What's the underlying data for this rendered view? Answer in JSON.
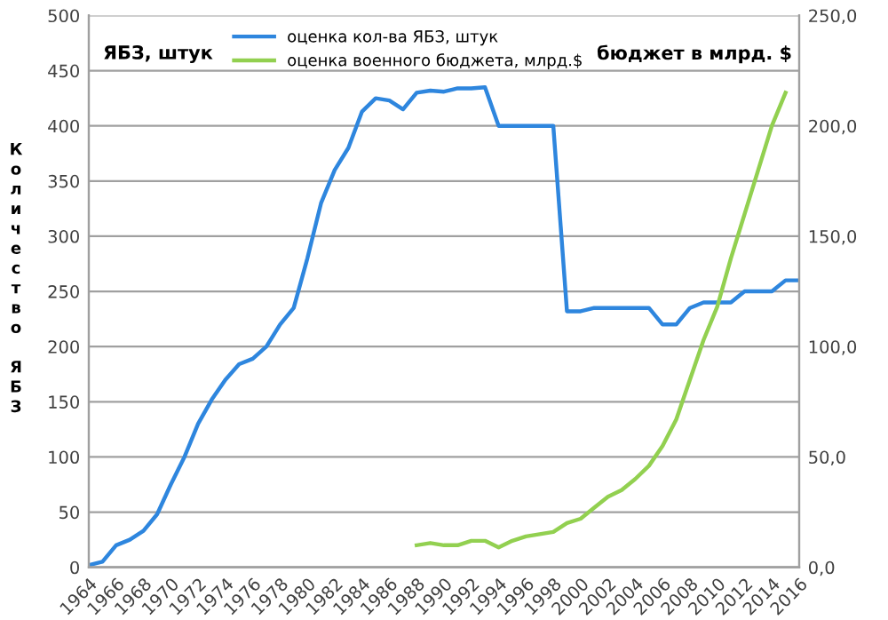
{
  "chart_data": {
    "type": "line",
    "x": [
      1964,
      1965,
      1966,
      1967,
      1968,
      1969,
      1970,
      1971,
      1972,
      1973,
      1974,
      1975,
      1976,
      1977,
      1978,
      1979,
      1980,
      1981,
      1982,
      1983,
      1984,
      1985,
      1986,
      1987,
      1988,
      1989,
      1990,
      1991,
      1992,
      1993,
      1994,
      1995,
      1996,
      1997,
      1998,
      1999,
      2000,
      2001,
      2002,
      2003,
      2004,
      2005,
      2006,
      2007,
      2008,
      2009,
      2010,
      2011,
      2012,
      2013,
      2014,
      2015,
      2016
    ],
    "series": [
      {
        "name": "оценка кол-ва ЯБЗ, штук",
        "color": "#2e86de",
        "values": [
          2,
          5,
          20,
          25,
          33,
          48,
          75,
          100,
          130,
          152,
          170,
          184,
          189,
          200,
          220,
          235,
          280,
          330,
          360,
          380,
          413,
          425,
          423,
          415,
          430,
          432,
          431,
          434,
          434,
          435,
          400,
          400,
          400,
          400,
          400,
          232,
          232,
          235,
          235,
          235,
          235,
          235,
          220,
          220,
          235,
          240,
          240,
          240,
          250,
          250,
          250,
          260,
          260
        ]
      },
      {
        "name": "оценка военного бюджета, млрд.$",
        "color": "#92d050",
        "axis": "y2",
        "x": [
          1988,
          1989,
          1990,
          1991,
          1992,
          1993,
          1994,
          1995,
          1996,
          1997,
          1998,
          1999,
          2000,
          2001,
          2002,
          2003,
          2004,
          2005,
          2006,
          2007,
          2008,
          2009,
          2010,
          2011,
          2012,
          2013,
          2014,
          2015
        ],
        "values": [
          10,
          11,
          10,
          10,
          12,
          12,
          9,
          12,
          14,
          15,
          16,
          20,
          22,
          27,
          32,
          35,
          40,
          46,
          55,
          67,
          85,
          103,
          118,
          140,
          160,
          180,
          200,
          215
        ]
      }
    ],
    "ylabel": "Количество ЯБЗ",
    "y2label": "бюджет в млрд. $",
    "annotations": [
      "ЯБЗ, штук"
    ],
    "xlim": [
      1964,
      2016
    ],
    "xticks": [
      1964,
      1966,
      1968,
      1970,
      1972,
      1974,
      1976,
      1978,
      1980,
      1982,
      1984,
      1986,
      1988,
      1990,
      1992,
      1994,
      1996,
      1998,
      2000,
      2002,
      2004,
      2006,
      2008,
      2010,
      2012,
      2014,
      2016
    ],
    "ylim": [
      0,
      500
    ],
    "yticks": [
      0,
      50,
      100,
      150,
      200,
      250,
      300,
      350,
      400,
      450,
      500
    ],
    "y2lim": [
      0,
      250
    ],
    "y2ticks": [
      {
        "value": 0,
        "label": "0,0"
      },
      {
        "value": 50,
        "label": "50,0"
      },
      {
        "value": 100,
        "label": "100,0"
      },
      {
        "value": 150,
        "label": "150,0"
      },
      {
        "value": 200,
        "label": "200,0"
      },
      {
        "value": 250,
        "label": "250,0"
      }
    ],
    "grid": "y",
    "legend": "top",
    "marker": "none",
    "line_style": "solid"
  }
}
